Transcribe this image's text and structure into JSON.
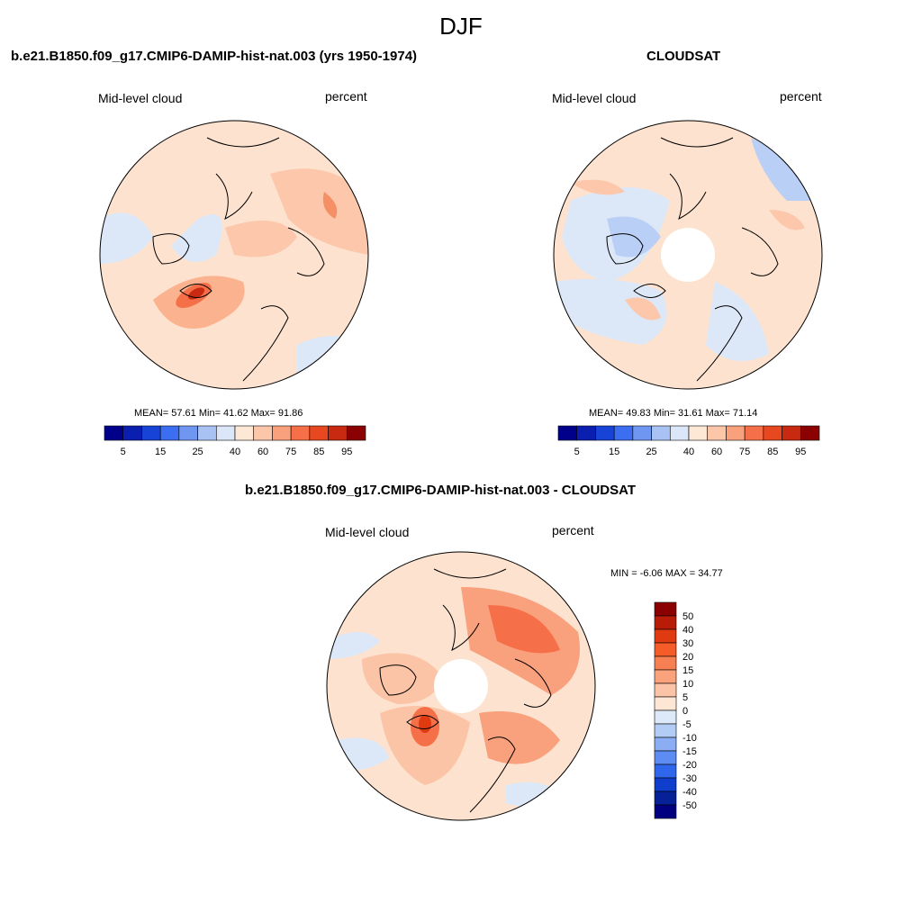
{
  "figure": {
    "season": "DJF",
    "panels": [
      {
        "title": "b.e21.B1850.f09_g17.CMIP6-DAMIP-hist-nat.003 (yrs 1950-1974)",
        "left_label": "Mid-level cloud",
        "right_label": "percent",
        "stats": "MEAN=  57.61  Min=  41.62  Max=  91.86"
      },
      {
        "title": "CLOUDSAT",
        "left_label": "Mid-level cloud",
        "right_label": "percent",
        "stats": "MEAN=  49.83  Min=  31.61  Max=  71.14"
      },
      {
        "title": "b.e21.B1850.f09_g17.CMIP6-DAMIP-hist-nat.003 - CLOUDSAT",
        "left_label": "Mid-level cloud",
        "right_label": "percent",
        "stats": "MIN =  -6.06 MAX =  34.77"
      }
    ]
  },
  "colorbar_abs": {
    "ticks": [
      "5",
      "15",
      "25",
      "40",
      "60",
      "75",
      "85",
      "95"
    ],
    "colors": [
      "#00008b",
      "#0a1fb0",
      "#1744d6",
      "#3b6ef0",
      "#6f97f2",
      "#a8c2f4",
      "#dbe6f8",
      "#fde8d6",
      "#fcc6a8",
      "#f9a07c",
      "#f57048",
      "#e84820",
      "#c72a10",
      "#8b0000"
    ]
  },
  "colorbar_diff": {
    "ticks": [
      "50",
      "40",
      "30",
      "20",
      "15",
      "10",
      "5",
      "0",
      "-5",
      "-10",
      "-15",
      "-20",
      "-30",
      "-40",
      "-50"
    ],
    "colors": [
      "#8b0000",
      "#b81c08",
      "#e03a10",
      "#f65c28",
      "#f78052",
      "#f9a27c",
      "#fcc4a6",
      "#fde6d4",
      "#dde9f8",
      "#b3ccf5",
      "#8aadf3",
      "#5d8cf2",
      "#2f66eb",
      "#0f3dcc",
      "#062097",
      "#000080"
    ]
  }
}
